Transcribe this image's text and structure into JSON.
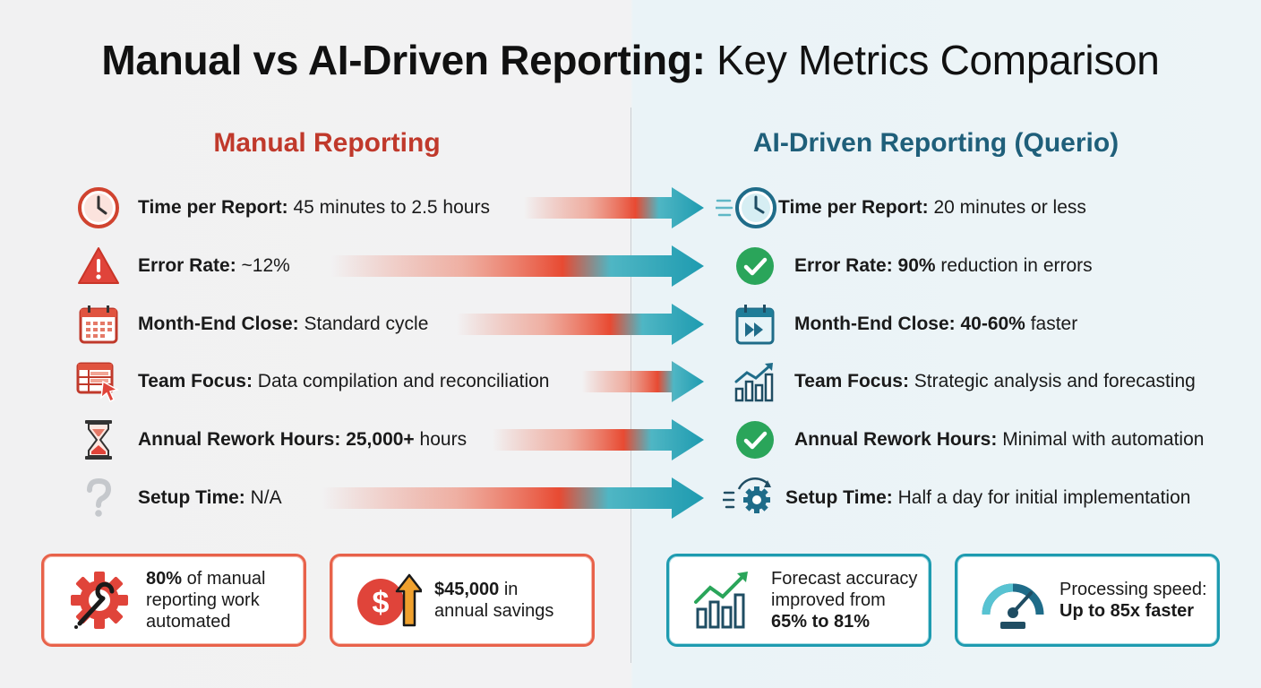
{
  "title": {
    "bold_part": "Manual vs AI-Driven Reporting:",
    "light_part": " Key Metrics Comparison"
  },
  "manual": {
    "heading": "Manual Reporting",
    "rows": [
      {
        "label": "Time per Report:",
        "value": " 45 minutes to 2.5 hours",
        "icon": "clock-icon"
      },
      {
        "label": "Error Rate:",
        "value": " ~12%",
        "icon": "warning-icon"
      },
      {
        "label": "Month-End Close:",
        "value": " Standard cycle",
        "icon": "calendar-icon"
      },
      {
        "label": "Team Focus:",
        "value": " Data compilation and reconciliation",
        "icon": "spreadsheet-cursor-icon"
      },
      {
        "label": "Annual Rework Hours:",
        "value_bold": " 25,000+",
        "value": " hours",
        "icon": "hourglass-icon"
      },
      {
        "label": "Setup Time:",
        "value": " N/A",
        "icon": "question-icon"
      }
    ],
    "cards": [
      {
        "bold": "80%",
        "line1": " of manual",
        "line2": "reporting work",
        "line3": "automated",
        "icon": "gear-wrench-icon"
      },
      {
        "bold": "$45,000",
        "line1": " in",
        "line2": "annual savings",
        "icon": "dollar-arrow-icon"
      }
    ]
  },
  "ai": {
    "heading": "AI-Driven Reporting (Querio)",
    "rows": [
      {
        "label": "Time per Report:",
        "value": " 20 minutes or less",
        "icon": "fast-clock-icon"
      },
      {
        "label": "Error Rate:",
        "value_bold": " 90%",
        "value": " reduction in errors",
        "icon": "check-circle-icon"
      },
      {
        "label": "Month-End Close:",
        "value_bold": " 40-60%",
        "value": " faster",
        "icon": "calendar-fast-forward-icon"
      },
      {
        "label": "Team Focus:",
        "value": " Strategic analysis and forecasting",
        "icon": "growth-chart-icon"
      },
      {
        "label": "Annual Rework Hours:",
        "value": " Minimal with automation",
        "icon": "check-circle-icon"
      },
      {
        "label": "Setup Time:",
        "value": " Half a day for initial implementation",
        "icon": "fast-gear-icon"
      }
    ],
    "cards": [
      {
        "line1": "Forecast accuracy",
        "line2": "improved from",
        "bold": "65% to 81%",
        "icon": "trend-chart-icon"
      },
      {
        "line1": "Processing speed:",
        "bold": "Up to 85x faster",
        "icon": "speedometer-icon"
      }
    ]
  },
  "colors": {
    "red": "#e04a3a",
    "teal": "#1e9bb0",
    "dark_teal": "#1f5f7a"
  }
}
